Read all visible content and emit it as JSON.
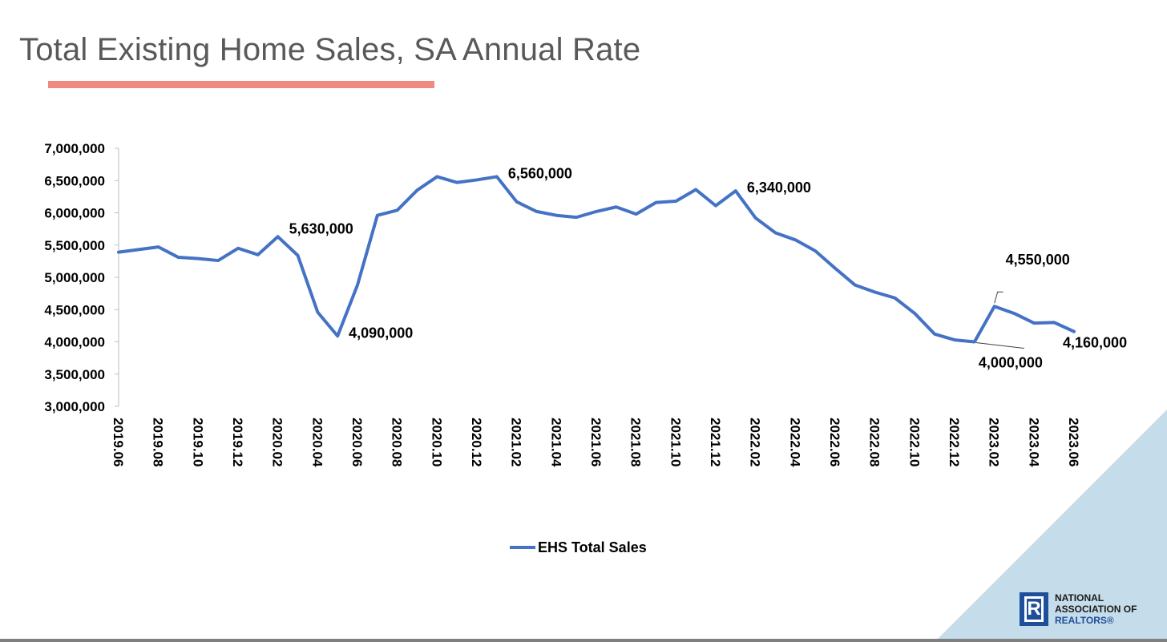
{
  "slide": {
    "title": "Total Existing Home Sales, SA Annual Rate",
    "accent_color": "#F08A80",
    "logo": {
      "line1": "NATIONAL",
      "line2": "ASSOCIATION OF",
      "line3": "REALTORS®",
      "mark": "R"
    }
  },
  "chart_data": {
    "type": "line",
    "title": "Total Existing Home Sales, SA Annual Rate",
    "xlabel": "",
    "ylabel": "",
    "ylim": [
      3000000,
      7000000
    ],
    "yticks": [
      3000000,
      3500000,
      4000000,
      4500000,
      5000000,
      5500000,
      6000000,
      6500000,
      7000000
    ],
    "ytick_labels": [
      "3,000,000",
      "3,500,000",
      "4,000,000",
      "4,500,000",
      "5,000,000",
      "5,500,000",
      "6,000,000",
      "6,500,000",
      "7,000,000"
    ],
    "x": [
      "2019.06",
      "2019.07",
      "2019.08",
      "2019.09",
      "2019.10",
      "2019.11",
      "2019.12",
      "2020.01",
      "2020.02",
      "2020.03",
      "2020.04",
      "2020.05",
      "2020.06",
      "2020.07",
      "2020.08",
      "2020.09",
      "2020.10",
      "2020.11",
      "2020.12",
      "2021.01",
      "2021.02",
      "2021.03",
      "2021.04",
      "2021.05",
      "2021.06",
      "2021.07",
      "2021.08",
      "2021.09",
      "2021.10",
      "2021.11",
      "2021.12",
      "2022.01",
      "2022.02",
      "2022.03",
      "2022.04",
      "2022.05",
      "2022.06",
      "2022.07",
      "2022.08",
      "2022.09",
      "2022.10",
      "2022.11",
      "2022.12",
      "2023.01",
      "2023.02",
      "2023.03",
      "2023.04",
      "2023.05",
      "2023.06"
    ],
    "xtick_labels": [
      "2019.06",
      "2019.08",
      "2019.10",
      "2019.12",
      "2020.02",
      "2020.04",
      "2020.06",
      "2020.08",
      "2020.10",
      "2020.12",
      "2021.02",
      "2021.04",
      "2021.06",
      "2021.08",
      "2021.10",
      "2021.12",
      "2022.02",
      "2022.04",
      "2022.06",
      "2022.08",
      "2022.10",
      "2022.12",
      "2023.02",
      "2023.04",
      "2023.06"
    ],
    "grid": false,
    "legend_position": "bottom-center",
    "series": [
      {
        "name": "EHS Total Sales",
        "color": "#4472C4",
        "values": [
          5390000,
          5430000,
          5470000,
          5310000,
          5290000,
          5260000,
          5450000,
          5350000,
          5630000,
          5340000,
          4460000,
          4090000,
          4880000,
          5960000,
          6040000,
          6350000,
          6560000,
          6470000,
          6510000,
          6560000,
          6170000,
          6020000,
          5960000,
          5930000,
          6020000,
          6090000,
          5980000,
          6160000,
          6180000,
          6360000,
          6110000,
          6340000,
          5920000,
          5690000,
          5580000,
          5410000,
          5140000,
          4880000,
          4770000,
          4680000,
          4440000,
          4120000,
          4030000,
          4000000,
          4550000,
          4440000,
          4290000,
          4300000,
          4160000
        ]
      }
    ],
    "annotations": [
      {
        "x": "2020.02",
        "value": 5630000,
        "label": "5,630,000"
      },
      {
        "x": "2020.05",
        "value": 4090000,
        "label": "4,090,000"
      },
      {
        "x": "2021.01",
        "value": 6560000,
        "label": "6,560,000"
      },
      {
        "x": "2022.01",
        "value": 6340000,
        "label": "6,340,000"
      },
      {
        "x": "2023.01",
        "value": 4000000,
        "label": "4,000,000"
      },
      {
        "x": "2023.02",
        "value": 4550000,
        "label": "4,550,000"
      },
      {
        "x": "2023.06",
        "value": 4160000,
        "label": "4,160,000"
      }
    ]
  }
}
